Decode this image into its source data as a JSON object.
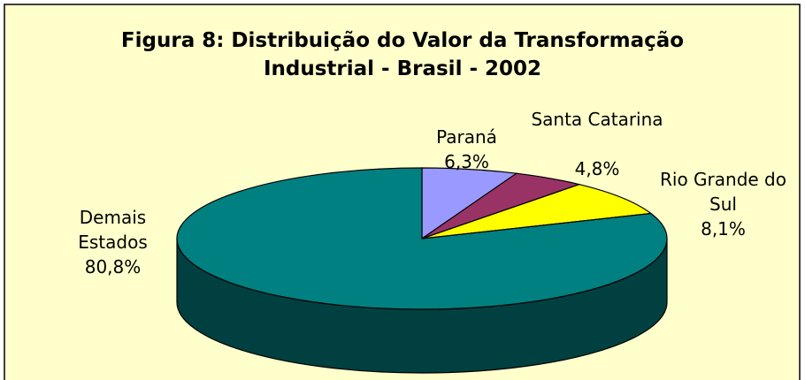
{
  "chart_data": {
    "type": "pie3d",
    "title": "Figura 8: Distribuição do Valor da Transformação Industrial - Brasil - 2002",
    "categories": [
      "Paraná",
      "Santa Catarina",
      "Rio Grande do Sul",
      "Demais Estados"
    ],
    "values": [
      6.3,
      4.8,
      8.1,
      80.8
    ],
    "value_labels": [
      "6,3%",
      "4,8%",
      "8,1%",
      "80,8%"
    ],
    "colors": [
      "#9999ff",
      "#993366",
      "#ffff00",
      "#008080"
    ]
  }
}
